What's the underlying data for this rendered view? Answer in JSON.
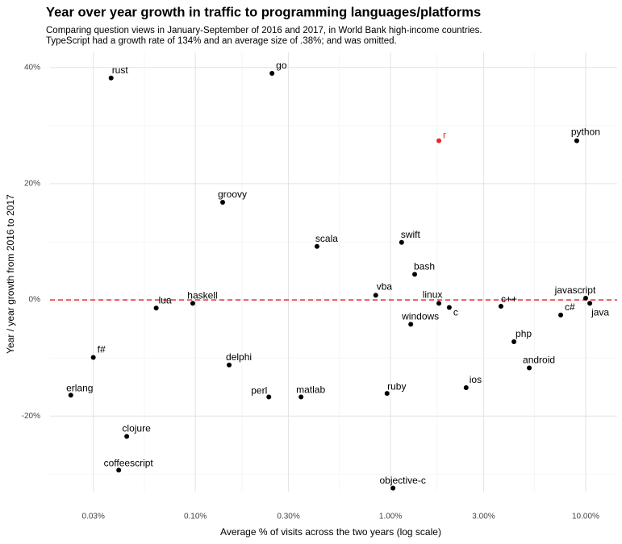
{
  "chart_data": {
    "type": "scatter",
    "title": "Year over year growth in traffic to programming languages/platforms",
    "subtitle": [
      "Comparing question views in January-September of 2016 and 2017, in World Bank high-income countries.",
      "TypeScript had a growth rate of 134% and an average size of .38%; and was omitted."
    ],
    "x_label": "Average % of visits across the two years (log scale)",
    "y_label": "Year / year growth from 2016 to 2017",
    "log_x": true,
    "grid": true,
    "xlim": [
      0.018,
      14.5
    ],
    "ylim": [
      -33,
      42.6
    ],
    "xticks": [
      {
        "value": 0.03,
        "label": "0.03%"
      },
      {
        "value": 0.1,
        "label": "0.10%"
      },
      {
        "value": 0.3,
        "label": "0.30%"
      },
      {
        "value": 1,
        "label": "1.00%"
      },
      {
        "value": 3,
        "label": "3.00%"
      },
      {
        "value": 10,
        "label": "10.00%"
      }
    ],
    "yticks": [
      {
        "value": -20,
        "label": "-20%"
      },
      {
        "value": 0,
        "label": "0%"
      },
      {
        "value": 20,
        "label": "20%"
      },
      {
        "value": 40,
        "label": "40%"
      }
    ],
    "hline": {
      "value": 0,
      "color": "#e8262b"
    },
    "point_labels": [
      "rust",
      "go",
      "r",
      "python",
      "groovy",
      "scala",
      "swift",
      "bash",
      "vba",
      "javascript",
      "lua",
      "haskell",
      "linux",
      "c",
      "c++",
      "windows",
      "c#",
      "java",
      "php",
      "f#",
      "delphi",
      "android",
      "ios",
      "ruby",
      "erlang",
      "perl",
      "matlab",
      "clojure",
      "coffeescript",
      "objective-c"
    ],
    "x": [
      0.037,
      0.247,
      1.77,
      9.0,
      0.138,
      0.42,
      1.14,
      1.33,
      0.84,
      10.0,
      0.063,
      0.097,
      1.77,
      2.0,
      3.68,
      1.27,
      7.45,
      10.5,
      4.29,
      0.03,
      0.149,
      5.14,
      2.44,
      0.96,
      0.023,
      0.238,
      0.348,
      0.0445,
      0.0405,
      1.03
    ],
    "values": [
      38.2,
      39.0,
      27.4,
      27.4,
      16.8,
      9.2,
      9.9,
      4.4,
      0.8,
      0.3,
      -1.4,
      -0.6,
      -0.6,
      -1.3,
      -1.1,
      -4.2,
      -2.6,
      -0.6,
      -7.2,
      -9.9,
      -11.2,
      -11.7,
      -15.1,
      -16.1,
      -16.4,
      -16.7,
      -16.7,
      -23.5,
      -29.3,
      -32.4
    ],
    "colors": [
      "#000000",
      "#000000",
      "#e8262b",
      "#000000",
      "#000000",
      "#000000",
      "#000000",
      "#000000",
      "#000000",
      "#000000",
      "#000000",
      "#000000",
      "#000000",
      "#000000",
      "#000000",
      "#000000",
      "#000000",
      "#000000",
      "#000000",
      "#000000",
      "#000000",
      "#000000",
      "#000000",
      "#000000",
      "#000000",
      "#000000",
      "#000000",
      "#000000",
      "#000000",
      "#000000"
    ]
  }
}
